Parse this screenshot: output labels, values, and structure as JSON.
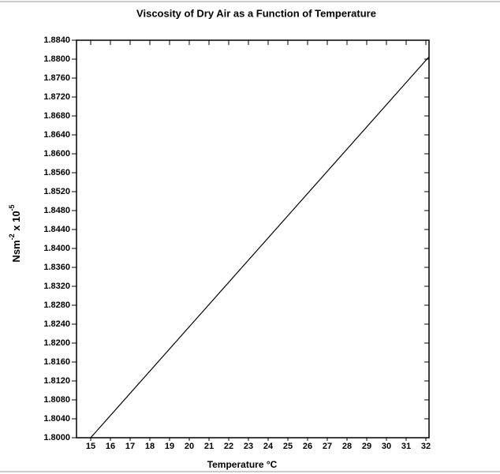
{
  "chart_data": {
    "type": "line",
    "title": "Viscosity of Dry Air as a Function of Temperature",
    "xlabel": "Temperature °C",
    "ylabel": [
      "Nsm",
      "-2",
      " x 10",
      "-5"
    ],
    "x": [
      15,
      32.16
    ],
    "series": [
      {
        "color": "#000000",
        "values": [
          1.8,
          1.8805
        ]
      }
    ],
    "xlim": [
      14.28,
      32.16
    ],
    "ylim": [
      1.8,
      1.884
    ],
    "xticks": [
      15,
      16,
      17,
      18,
      19,
      20,
      21,
      22,
      23,
      24,
      25,
      26,
      27,
      28,
      29,
      30,
      31,
      32
    ],
    "yticks": [
      {
        "value": 1.8,
        "label": "1.8000"
      },
      {
        "value": 1.804,
        "label": "1.8040"
      },
      {
        "value": 1.808,
        "label": "1.8080"
      },
      {
        "value": 1.812,
        "label": "1.8120"
      },
      {
        "value": 1.816,
        "label": "1.8160"
      },
      {
        "value": 1.82,
        "label": "1.8200"
      },
      {
        "value": 1.824,
        "label": "1.8240"
      },
      {
        "value": 1.828,
        "label": "1.8280"
      },
      {
        "value": 1.832,
        "label": "1.8320"
      },
      {
        "value": 1.836,
        "label": "1.8360"
      },
      {
        "value": 1.84,
        "label": "1.8400"
      },
      {
        "value": 1.844,
        "label": "1.8440"
      },
      {
        "value": 1.848,
        "label": "1.8480"
      },
      {
        "value": 1.852,
        "label": "1.8520"
      },
      {
        "value": 1.856,
        "label": "1.8560"
      },
      {
        "value": 1.86,
        "label": "1.8600"
      },
      {
        "value": 1.864,
        "label": "1.8640"
      },
      {
        "value": 1.868,
        "label": "1.8680"
      },
      {
        "value": 1.872,
        "label": "1.8720"
      },
      {
        "value": 1.876,
        "label": "1.8760"
      },
      {
        "value": 1.88,
        "label": "1.8800"
      },
      {
        "value": 1.884,
        "label": "1.8840"
      }
    ],
    "grid": false
  }
}
